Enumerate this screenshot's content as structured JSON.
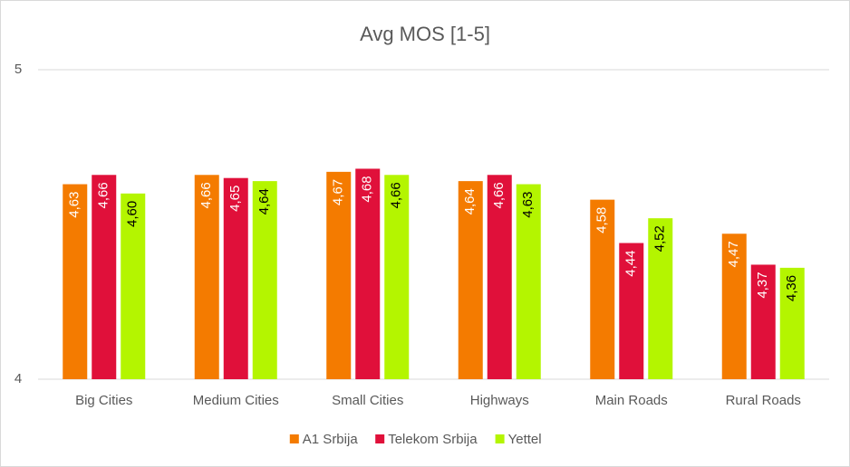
{
  "chart_data": {
    "type": "bar",
    "title": "Avg MOS [1-5]",
    "categories": [
      "Big Cities",
      "Medium Cities",
      "Small Cities",
      "Highways",
      "Main Roads",
      "Rural Roads"
    ],
    "series": [
      {
        "name": "A1 Srbija",
        "color": "#f47b00",
        "values": [
          4.63,
          4.66,
          4.67,
          4.64,
          4.58,
          4.47
        ],
        "value_labels": [
          "4,63",
          "4,66",
          "4,67",
          "4,64",
          "4,58",
          "4,47"
        ]
      },
      {
        "name": "Telekom Srbija",
        "color": "#e0103a",
        "values": [
          4.66,
          4.65,
          4.68,
          4.66,
          4.44,
          4.37
        ],
        "value_labels": [
          "4,66",
          "4,65",
          "4,68",
          "4,66",
          "4,44",
          "4,37"
        ]
      },
      {
        "name": "Yettel",
        "color": "#b4f500",
        "values": [
          4.6,
          4.64,
          4.66,
          4.63,
          4.52,
          4.36
        ],
        "value_labels": [
          "4,60",
          "4,64",
          "4,66",
          "4,63",
          "4,52",
          "4,36"
        ]
      }
    ],
    "ylim": [
      4,
      5
    ],
    "yticks": [
      4,
      5
    ],
    "grid": true,
    "legend": "bottom"
  }
}
